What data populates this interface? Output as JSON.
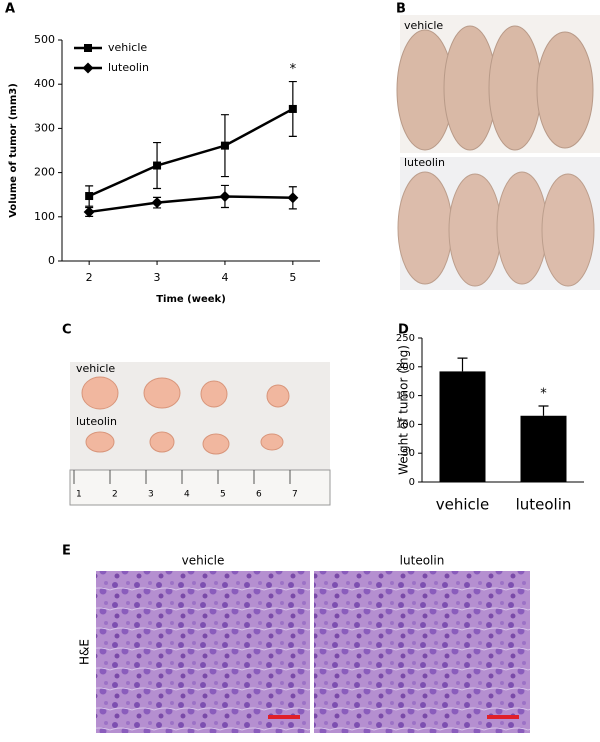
{
  "chart_data": [
    {
      "type": "line",
      "panel": "A",
      "xlabel": "Time (week)",
      "ylabel": "Volume of tumor (mm3)",
      "x": [
        2,
        3,
        4,
        5
      ],
      "xlim": [
        1.6,
        5.4
      ],
      "xticks": [
        2,
        3,
        4,
        5
      ],
      "ylim": [
        0,
        500
      ],
      "yticks": [
        0,
        100,
        200,
        300,
        400,
        500
      ],
      "series": [
        {
          "name": "vehicle",
          "color": "#000000",
          "marker": "square",
          "values": [
            147,
            216,
            261,
            344
          ],
          "errors": [
            23,
            52,
            70,
            62
          ]
        },
        {
          "name": "luteolin",
          "color": "#000000",
          "marker": "diamond",
          "values": [
            111,
            132,
            146,
            143
          ],
          "errors": [
            10,
            12,
            25,
            25
          ]
        }
      ],
      "legend": "upper left",
      "annotation": "*"
    },
    {
      "type": "bar",
      "panel": "D",
      "ylabel": "Weight of tumor (mg)",
      "categories": [
        "vehicle",
        "luteolin"
      ],
      "values": [
        192,
        115
      ],
      "errors": [
        23,
        17
      ],
      "color": "#000000",
      "ylim": [
        0,
        250
      ],
      "yticks": [
        0,
        50,
        100,
        150,
        200,
        250
      ],
      "annotation": "*"
    }
  ],
  "photos": {
    "B": {
      "panel": "B",
      "labels": [
        "vehicle",
        "luteolin"
      ]
    },
    "C": {
      "panel": "C",
      "labels": [
        "vehicle",
        "luteolin"
      ],
      "ruler": [
        "1",
        "2",
        "3",
        "4",
        "5",
        "6",
        "7"
      ]
    },
    "E": {
      "panel": "E",
      "titles": [
        "vehicle",
        "luteolin"
      ],
      "stain": "H&E"
    }
  }
}
